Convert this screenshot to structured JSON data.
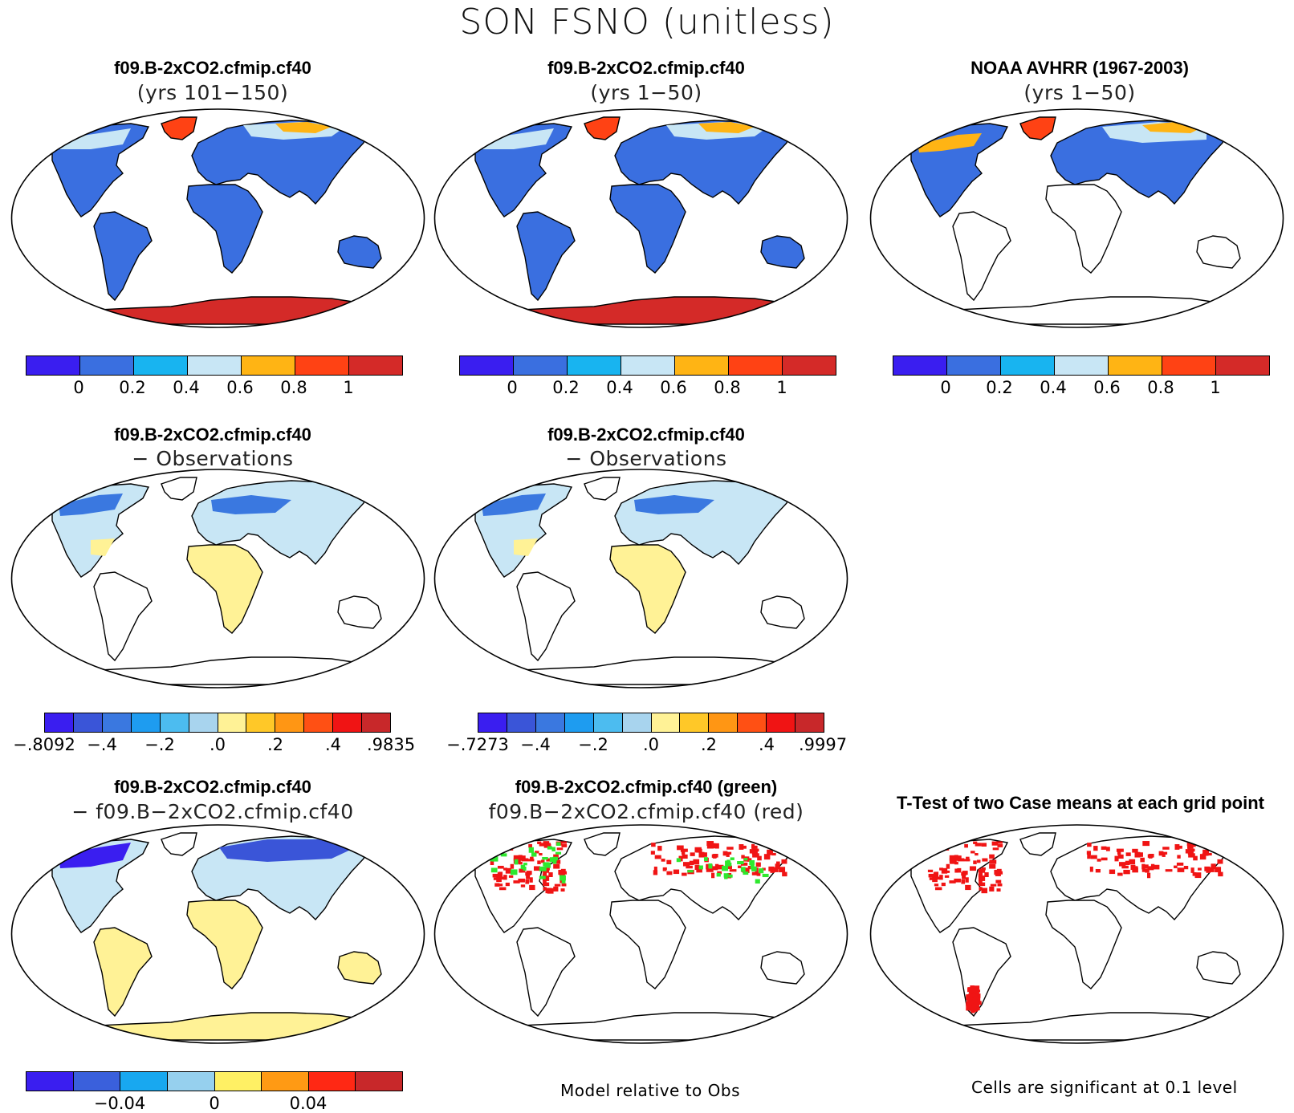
{
  "title": "SON FSNO (unitless)",
  "colors": {
    "abs": [
      "#3a1ef0",
      "#3a6fe0",
      "#18b4f0",
      "#c8e6f5",
      "#ffb414",
      "#ff4214",
      "#d42a28"
    ],
    "diff": [
      "#3a1ef0",
      "#3a55d8",
      "#3a78e0",
      "#1e9cf0",
      "#4cbcf0",
      "#a8d4ee",
      "#fff296",
      "#ffc828",
      "#ff9614",
      "#ff5014",
      "#f01414",
      "#c8282a"
    ],
    "diff2": [
      "#3a1ef0",
      "#3a60dc",
      "#18a8f0",
      "#96d0ee",
      "#fff064",
      "#ff9a14",
      "#ff2814",
      "#c8282a"
    ],
    "land": "#3a6fe0",
    "snow_light": "#c8e6f5",
    "snow_orange": "#ffb414",
    "greenland": "#ff4214",
    "antarctica": "#d42a28",
    "diff_yellow": "#fff296",
    "sig_red": "#f01414",
    "sig_green": "#2ee82e"
  },
  "panels": [
    {
      "title": "f09.B-2xCO2.cfmip.cf40",
      "subtitle": "(yrs 101−150)",
      "kind": "model"
    },
    {
      "title": "f09.B-2xCO2.cfmip.cf40",
      "subtitle": "(yrs 1−50)",
      "kind": "model"
    },
    {
      "title": "NOAA AVHRR (1967-2003)",
      "subtitle": "(yrs 1−50)",
      "kind": "obs"
    },
    {
      "title": "f09.B-2xCO2.cfmip.cf40",
      "subtitle": "− Observations",
      "kind": "diffobs"
    },
    {
      "title": "f09.B-2xCO2.cfmip.cf40",
      "subtitle": "− Observations",
      "kind": "diffobs"
    },
    {
      "title": "f09.B-2xCO2.cfmip.cf40",
      "subtitle": "− f09.B−2xCO2.cfmip.cf40",
      "kind": "diffmodel"
    },
    {
      "title": "f09.B-2xCO2.cfmip.cf40 (green)",
      "subtitle": "f09.B−2xCO2.cfmip.cf40 (red)",
      "kind": "sigcompare"
    },
    {
      "title": "T-Test of two Case means at each grid point",
      "subtitle": "",
      "kind": "sig"
    }
  ],
  "colorbars": {
    "abs": {
      "ticks": [
        "0",
        "0.2",
        "0.4",
        "0.6",
        "0.8",
        "1"
      ]
    },
    "diff1": {
      "ticks": [
        "−.8092",
        "−.4",
        "−.2",
        ".0",
        ".2",
        ".4",
        ".9835"
      ]
    },
    "diff2": {
      "ticks": [
        "−.7273",
        "−.4",
        "−.2",
        ".0",
        ".2",
        ".4",
        ".9997"
      ]
    },
    "diff3": {
      "ticks": [
        "−0.04",
        "0",
        "0.04"
      ]
    }
  },
  "notes": {
    "model_relative": "Model relative to Obs",
    "cells_significant": "Cells are significant at 0.1 level"
  }
}
